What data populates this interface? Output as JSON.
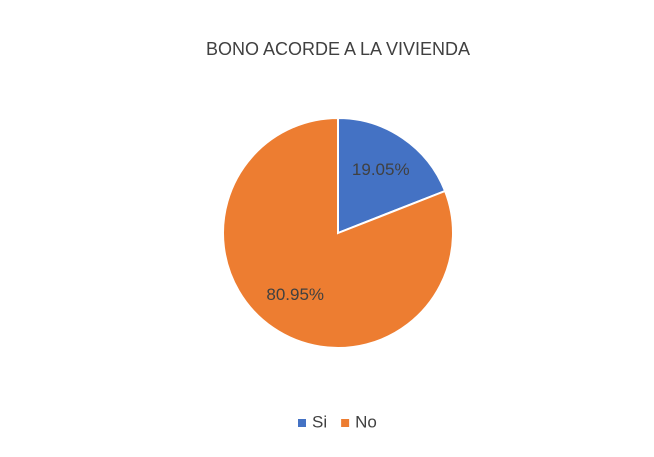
{
  "chart_data": {
    "type": "pie",
    "title": "BONO ACORDE A LA VIVIENDA",
    "categories": [
      "Si",
      "No"
    ],
    "values": [
      19.05,
      80.95
    ],
    "value_labels": [
      "19.05%",
      "80.95%"
    ],
    "colors": [
      "#4472c4",
      "#ed7d31"
    ],
    "legend": "bottom"
  }
}
